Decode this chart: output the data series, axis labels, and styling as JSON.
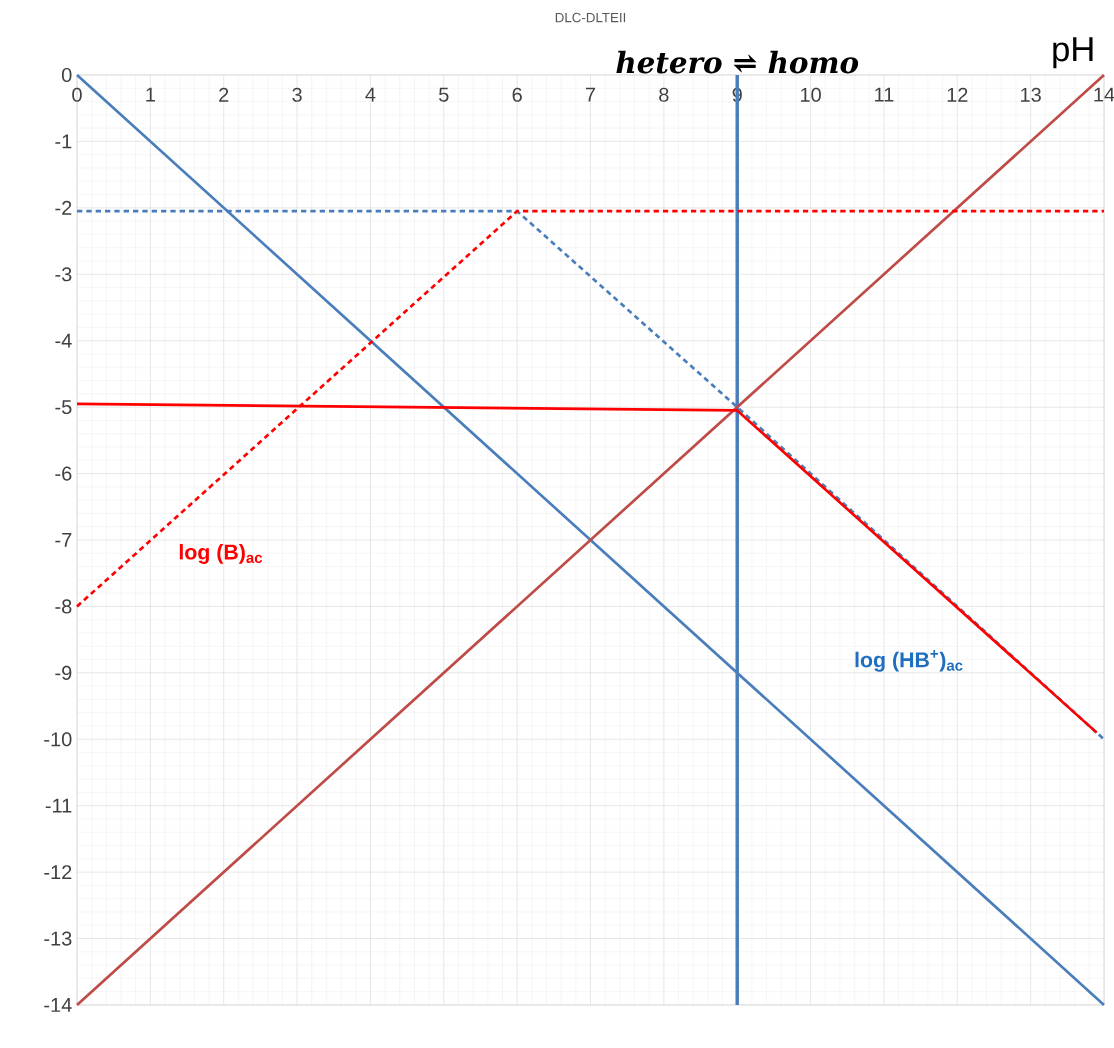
{
  "chart_data": {
    "type": "line",
    "title": "DLC-DLTEII",
    "xlabel": "pH",
    "xlim": [
      0,
      14
    ],
    "ylim": [
      -14,
      0
    ],
    "xticks": [
      0,
      1,
      2,
      3,
      4,
      5,
      6,
      7,
      8,
      9,
      10,
      11,
      12,
      13,
      14
    ],
    "yticks": [
      0,
      -1,
      -2,
      -3,
      -4,
      -5,
      -6,
      -7,
      -8,
      -9,
      -10,
      -11,
      -12,
      -13,
      -14
    ],
    "grid": true,
    "marker": "none",
    "series": [
      {
        "color": "#4a7ebb",
        "x": [
          0,
          14
        ],
        "values": [
          0,
          -14
        ],
        "line_style": "solid"
      },
      {
        "color": "#be4b48",
        "x": [
          0,
          14
        ],
        "values": [
          -14,
          0
        ],
        "line_style": "solid"
      },
      {
        "color": "#4a7ebb",
        "x": [
          0,
          6,
          9,
          14
        ],
        "values": [
          -2.05,
          -2.05,
          -5,
          -10
        ],
        "line_style": "dashed"
      },
      {
        "color": "#ff0000",
        "x": [
          0,
          6,
          14
        ],
        "values": [
          -8,
          -2.05,
          -2.05
        ],
        "line_style": "dashed"
      },
      {
        "color": "#ff0000",
        "x": [
          0,
          9,
          13.9
        ],
        "values": [
          -4.95,
          -5.05,
          -9.9
        ],
        "line_style": "solid"
      }
    ],
    "ref_lines": [
      {
        "axis": "x",
        "value": 9,
        "label": "hetero ⇌ homo",
        "color": "#4a7ebb"
      }
    ],
    "annotations": [
      "log (B)$_{ac}$",
      "log (HB$^{+}$)$_{ac}$"
    ]
  }
}
